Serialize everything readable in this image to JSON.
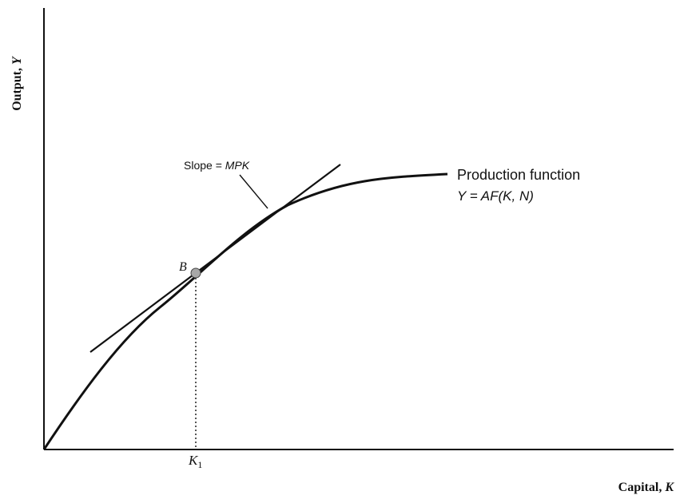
{
  "diagram": {
    "y_axis_label": {
      "text": "Output, ",
      "var": "Y"
    },
    "x_axis_label": {
      "text": "Capital, ",
      "var": "K"
    },
    "curve_label_line1": "Production function",
    "curve_label_line2": {
      "prefix": "Y = ",
      "func": "AF",
      "args": "(K, N)"
    },
    "slope_label": {
      "prefix": "Slope = ",
      "var": "MPK"
    },
    "point_label": "B",
    "tick_label": {
      "var": "K",
      "sub": "1"
    }
  },
  "colors": {
    "ink": "#111111",
    "point_fill": "#a8a8a8",
    "background": "#ffffff"
  }
}
